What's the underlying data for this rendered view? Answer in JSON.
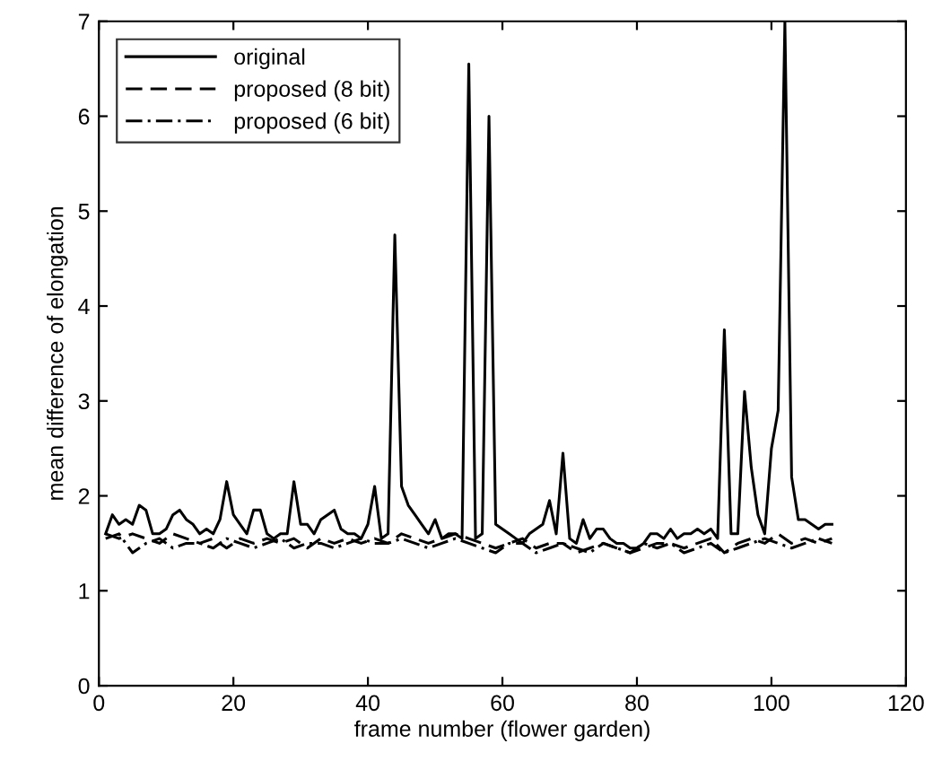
{
  "chart_data": {
    "type": "line",
    "xlabel": "frame number (flower garden)",
    "ylabel": "mean difference of elongation",
    "xlim": [
      0,
      120
    ],
    "ylim": [
      0,
      7
    ],
    "xticks": [
      0,
      20,
      40,
      60,
      80,
      100,
      120
    ],
    "yticks": [
      0,
      1,
      2,
      3,
      4,
      5,
      6,
      7
    ],
    "grid": false,
    "legend": "top left",
    "series": [
      {
        "name": "original",
        "color": "#000000",
        "line_style": "solid",
        "x": [
          1,
          2,
          3,
          4,
          5,
          6,
          7,
          8,
          9,
          10,
          11,
          12,
          13,
          14,
          15,
          16,
          17,
          18,
          19,
          20,
          21,
          22,
          23,
          24,
          25,
          26,
          27,
          28,
          29,
          30,
          31,
          32,
          33,
          34,
          35,
          36,
          37,
          38,
          39,
          40,
          41,
          42,
          43,
          44,
          45,
          46,
          47,
          48,
          49,
          50,
          51,
          52,
          53,
          54,
          55,
          56,
          57,
          58,
          59,
          60,
          61,
          62,
          63,
          64,
          65,
          66,
          67,
          68,
          69,
          70,
          71,
          72,
          73,
          74,
          75,
          76,
          77,
          78,
          79,
          80,
          81,
          82,
          83,
          84,
          85,
          86,
          87,
          88,
          89,
          90,
          91,
          92,
          93,
          94,
          95,
          96,
          97,
          98,
          99,
          100,
          101,
          102,
          103,
          104,
          105,
          106,
          107,
          108,
          109
        ],
        "values": [
          1.6,
          1.8,
          1.7,
          1.75,
          1.7,
          1.9,
          1.85,
          1.6,
          1.6,
          1.65,
          1.8,
          1.85,
          1.75,
          1.7,
          1.6,
          1.65,
          1.6,
          1.75,
          2.15,
          1.8,
          1.7,
          1.6,
          1.85,
          1.85,
          1.6,
          1.55,
          1.6,
          1.6,
          2.15,
          1.7,
          1.7,
          1.6,
          1.75,
          1.8,
          1.85,
          1.65,
          1.6,
          1.6,
          1.55,
          1.7,
          2.1,
          1.55,
          1.6,
          4.75,
          2.1,
          1.9,
          1.8,
          1.7,
          1.6,
          1.75,
          1.55,
          1.6,
          1.6,
          1.55,
          6.55,
          1.55,
          1.6,
          6.0,
          1.7,
          1.65,
          1.6,
          1.55,
          1.5,
          1.6,
          1.65,
          1.7,
          1.95,
          1.6,
          2.45,
          1.55,
          1.5,
          1.75,
          1.55,
          1.65,
          1.65,
          1.55,
          1.5,
          1.5,
          1.45,
          1.45,
          1.5,
          1.6,
          1.6,
          1.55,
          1.65,
          1.55,
          1.6,
          1.6,
          1.65,
          1.6,
          1.65,
          1.55,
          3.75,
          1.6,
          1.6,
          3.1,
          2.3,
          1.8,
          1.6,
          2.5,
          2.9,
          7,
          2.2,
          1.75,
          1.75,
          1.7,
          1.65,
          1.7,
          1.7
        ]
      },
      {
        "name": "proposed (8 bit)",
        "color": "#000000",
        "line_style": "dashed",
        "x": [
          1,
          3,
          5,
          7,
          9,
          11,
          13,
          15,
          17,
          19,
          21,
          23,
          25,
          27,
          29,
          31,
          33,
          35,
          37,
          39,
          41,
          43,
          45,
          47,
          49,
          51,
          53,
          55,
          57,
          59,
          61,
          63,
          65,
          67,
          69,
          71,
          73,
          75,
          77,
          79,
          81,
          83,
          85,
          87,
          89,
          91,
          93,
          95,
          97,
          99,
          101,
          103,
          105,
          107,
          109
        ],
        "values": [
          1.6,
          1.55,
          1.6,
          1.55,
          1.5,
          1.6,
          1.55,
          1.5,
          1.55,
          1.45,
          1.55,
          1.5,
          1.55,
          1.5,
          1.55,
          1.45,
          1.55,
          1.5,
          1.55,
          1.5,
          1.55,
          1.5,
          1.6,
          1.55,
          1.5,
          1.55,
          1.6,
          1.55,
          1.5,
          1.45,
          1.5,
          1.55,
          1.45,
          1.5,
          1.5,
          1.4,
          1.45,
          1.5,
          1.45,
          1.4,
          1.45,
          1.5,
          1.5,
          1.45,
          1.5,
          1.55,
          1.4,
          1.5,
          1.55,
          1.5,
          1.6,
          1.5,
          1.55,
          1.5,
          1.55
        ]
      },
      {
        "name": "proposed (6 bit)",
        "color": "#000000",
        "line_style": "dashdot",
        "x": [
          1,
          3,
          5,
          7,
          9,
          11,
          13,
          15,
          17,
          19,
          21,
          23,
          25,
          27,
          29,
          31,
          33,
          35,
          37,
          39,
          41,
          43,
          45,
          47,
          49,
          51,
          53,
          55,
          57,
          59,
          61,
          63,
          65,
          67,
          69,
          71,
          73,
          75,
          77,
          79,
          81,
          83,
          85,
          87,
          89,
          91,
          93,
          95,
          97,
          99,
          101,
          103,
          105,
          107,
          109
        ],
        "values": [
          1.55,
          1.6,
          1.4,
          1.5,
          1.55,
          1.45,
          1.5,
          1.5,
          1.45,
          1.55,
          1.5,
          1.45,
          1.5,
          1.55,
          1.45,
          1.5,
          1.5,
          1.45,
          1.5,
          1.55,
          1.5,
          1.5,
          1.55,
          1.5,
          1.45,
          1.5,
          1.55,
          1.5,
          1.45,
          1.4,
          1.5,
          1.5,
          1.4,
          1.45,
          1.5,
          1.45,
          1.4,
          1.5,
          1.45,
          1.4,
          1.5,
          1.45,
          1.5,
          1.4,
          1.45,
          1.5,
          1.4,
          1.45,
          1.5,
          1.55,
          1.5,
          1.45,
          1.5,
          1.55,
          1.5
        ]
      }
    ]
  }
}
